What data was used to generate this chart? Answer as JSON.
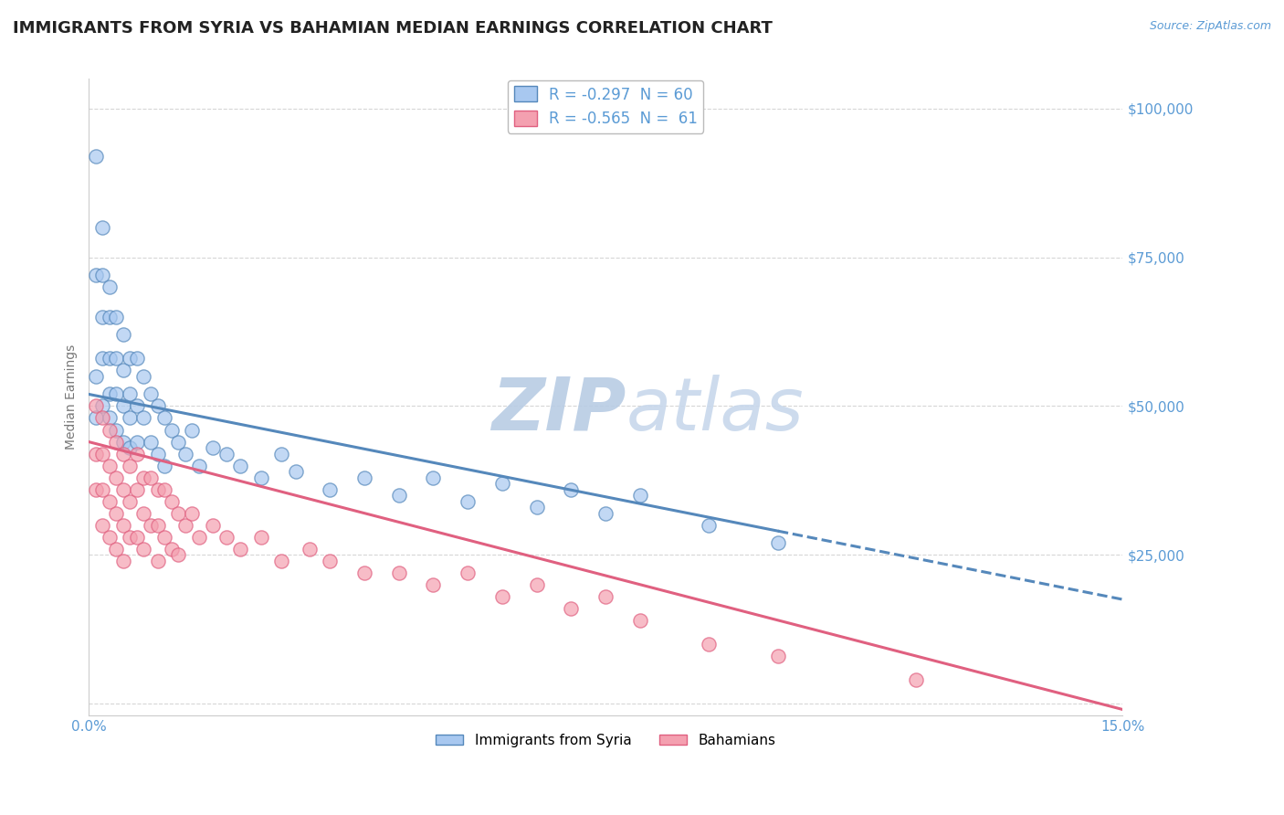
{
  "title": "IMMIGRANTS FROM SYRIA VS BAHAMIAN MEDIAN EARNINGS CORRELATION CHART",
  "source_text": "Source: ZipAtlas.com",
  "watermark_zip": "ZIP",
  "watermark_atlas": "atlas",
  "xlabel": "",
  "ylabel": "Median Earnings",
  "xlim": [
    0.0,
    0.15
  ],
  "ylim": [
    -2000,
    105000
  ],
  "xticks": [
    0.0,
    0.15
  ],
  "xticklabels": [
    "0.0%",
    "15.0%"
  ],
  "yticks": [
    0,
    25000,
    50000,
    75000,
    100000
  ],
  "yticklabels": [
    "",
    "$25,000",
    "$50,000",
    "$75,000",
    "$100,000"
  ],
  "series1_color": "#a8c8f0",
  "series2_color": "#f4a0b0",
  "series1_line_color": "#5588bb",
  "series2_line_color": "#e06080",
  "legend1_label": "R = -0.297  N = 60",
  "legend2_label": "R = -0.565  N =  61",
  "series1_name": "Immigrants from Syria",
  "series2_name": "Bahamians",
  "title_color": "#222222",
  "axis_color": "#5b9bd5",
  "grid_color": "#cccccc",
  "watermark_color": "#c8d8ec",
  "title_fontsize": 13,
  "axis_label_fontsize": 10,
  "tick_fontsize": 11,
  "background_color": "#ffffff",
  "series1_line_intercept": 52000,
  "series1_line_slope": -230000,
  "series2_line_intercept": 44000,
  "series2_line_slope": -300000,
  "series1_x": [
    0.001,
    0.001,
    0.001,
    0.001,
    0.002,
    0.002,
    0.002,
    0.002,
    0.002,
    0.003,
    0.003,
    0.003,
    0.003,
    0.003,
    0.004,
    0.004,
    0.004,
    0.004,
    0.005,
    0.005,
    0.005,
    0.005,
    0.006,
    0.006,
    0.006,
    0.006,
    0.007,
    0.007,
    0.007,
    0.008,
    0.008,
    0.009,
    0.009,
    0.01,
    0.01,
    0.011,
    0.011,
    0.012,
    0.013,
    0.014,
    0.015,
    0.016,
    0.018,
    0.02,
    0.022,
    0.025,
    0.028,
    0.03,
    0.035,
    0.04,
    0.045,
    0.05,
    0.055,
    0.06,
    0.065,
    0.07,
    0.075,
    0.08,
    0.09,
    0.1
  ],
  "series1_y": [
    92000,
    72000,
    55000,
    48000,
    80000,
    72000,
    65000,
    58000,
    50000,
    70000,
    65000,
    58000,
    52000,
    48000,
    65000,
    58000,
    52000,
    46000,
    62000,
    56000,
    50000,
    44000,
    58000,
    52000,
    48000,
    43000,
    58000,
    50000,
    44000,
    55000,
    48000,
    52000,
    44000,
    50000,
    42000,
    48000,
    40000,
    46000,
    44000,
    42000,
    46000,
    40000,
    43000,
    42000,
    40000,
    38000,
    42000,
    39000,
    36000,
    38000,
    35000,
    38000,
    34000,
    37000,
    33000,
    36000,
    32000,
    35000,
    30000,
    27000
  ],
  "series2_x": [
    0.001,
    0.001,
    0.001,
    0.002,
    0.002,
    0.002,
    0.002,
    0.003,
    0.003,
    0.003,
    0.003,
    0.004,
    0.004,
    0.004,
    0.004,
    0.005,
    0.005,
    0.005,
    0.005,
    0.006,
    0.006,
    0.006,
    0.007,
    0.007,
    0.007,
    0.008,
    0.008,
    0.008,
    0.009,
    0.009,
    0.01,
    0.01,
    0.01,
    0.011,
    0.011,
    0.012,
    0.012,
    0.013,
    0.013,
    0.014,
    0.015,
    0.016,
    0.018,
    0.02,
    0.022,
    0.025,
    0.028,
    0.032,
    0.035,
    0.04,
    0.045,
    0.05,
    0.055,
    0.06,
    0.065,
    0.07,
    0.075,
    0.08,
    0.09,
    0.1,
    0.12
  ],
  "series2_y": [
    50000,
    42000,
    36000,
    48000,
    42000,
    36000,
    30000,
    46000,
    40000,
    34000,
    28000,
    44000,
    38000,
    32000,
    26000,
    42000,
    36000,
    30000,
    24000,
    40000,
    34000,
    28000,
    42000,
    36000,
    28000,
    38000,
    32000,
    26000,
    38000,
    30000,
    36000,
    30000,
    24000,
    36000,
    28000,
    34000,
    26000,
    32000,
    25000,
    30000,
    32000,
    28000,
    30000,
    28000,
    26000,
    28000,
    24000,
    26000,
    24000,
    22000,
    22000,
    20000,
    22000,
    18000,
    20000,
    16000,
    18000,
    14000,
    10000,
    8000,
    4000
  ]
}
